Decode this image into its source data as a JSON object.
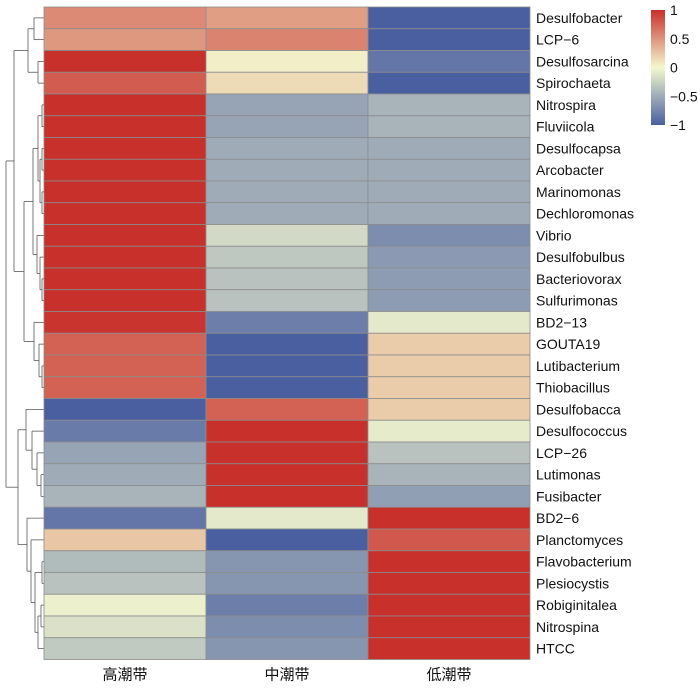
{
  "chart_data": {
    "type": "heatmap",
    "title": "",
    "xlabel": "",
    "ylabel": "",
    "columns": [
      "高潮带",
      "中潮带",
      "低潮带"
    ],
    "rows": [
      {
        "name": "Desulfobacter",
        "values": [
          0.55,
          0.45,
          -1.0
        ]
      },
      {
        "name": "LCP−6",
        "values": [
          0.48,
          0.58,
          -1.0
        ]
      },
      {
        "name": "Desulfosarcina",
        "values": [
          1.0,
          0.05,
          -0.85
        ]
      },
      {
        "name": "Spirochaeta",
        "values": [
          0.78,
          0.15,
          -1.0
        ]
      },
      {
        "name": "Nitrospira",
        "values": [
          1.0,
          -0.55,
          -0.45
        ]
      },
      {
        "name": "Fluviicola",
        "values": [
          1.0,
          -0.55,
          -0.45
        ]
      },
      {
        "name": "Desulfocapsa",
        "values": [
          1.0,
          -0.5,
          -0.5
        ]
      },
      {
        "name": "Arcobacter",
        "values": [
          1.0,
          -0.5,
          -0.5
        ]
      },
      {
        "name": "Marinomonas",
        "values": [
          1.0,
          -0.5,
          -0.5
        ]
      },
      {
        "name": "Dechloromonas",
        "values": [
          1.0,
          -0.5,
          -0.5
        ]
      },
      {
        "name": "Vibrio",
        "values": [
          1.0,
          -0.2,
          -0.7
        ]
      },
      {
        "name": "Desulfobulbus",
        "values": [
          1.0,
          -0.32,
          -0.62
        ]
      },
      {
        "name": "Bacteriovorax",
        "values": [
          1.0,
          -0.35,
          -0.6
        ]
      },
      {
        "name": "Sulfurimonas",
        "values": [
          1.0,
          -0.35,
          -0.6
        ]
      },
      {
        "name": "BD2−13",
        "values": [
          0.98,
          -0.8,
          -0.1
        ]
      },
      {
        "name": "GOUTA19",
        "values": [
          0.75,
          -1.0,
          0.22
        ]
      },
      {
        "name": "Lutibacterium",
        "values": [
          0.75,
          -1.0,
          0.22
        ]
      },
      {
        "name": "Thiobacillus",
        "values": [
          0.75,
          -1.0,
          0.22
        ]
      },
      {
        "name": "Desulfobacca",
        "values": [
          -1.0,
          0.75,
          0.22
        ]
      },
      {
        "name": "Desulfococcus",
        "values": [
          -0.82,
          1.0,
          -0.08
        ]
      },
      {
        "name": "LCP−26",
        "values": [
          -0.55,
          1.0,
          -0.35
        ]
      },
      {
        "name": "Lutimonas",
        "values": [
          -0.5,
          1.0,
          -0.45
        ]
      },
      {
        "name": "Fusibacter",
        "values": [
          -0.45,
          1.0,
          -0.58
        ]
      },
      {
        "name": "BD2−6",
        "values": [
          -0.85,
          -0.1,
          1.0
        ]
      },
      {
        "name": "Planctomyces",
        "values": [
          0.25,
          -1.0,
          0.8
        ]
      },
      {
        "name": "Flavobacterium",
        "values": [
          -0.4,
          -0.65,
          1.0
        ]
      },
      {
        "name": "Plesiocystis",
        "values": [
          -0.35,
          -0.65,
          1.0
        ]
      },
      {
        "name": "Robiginitalea",
        "values": [
          -0.05,
          -0.8,
          1.0
        ]
      },
      {
        "name": "Nitrospina",
        "values": [
          -0.15,
          -0.7,
          1.0
        ]
      },
      {
        "name": "HTCC",
        "values": [
          -0.3,
          -0.65,
          1.0
        ]
      }
    ],
    "scale": {
      "min": -1,
      "max": 1,
      "colors": [
        "#4a5fa0",
        "#f4f8cf",
        "#c8302b"
      ],
      "ticks": [
        "1",
        "0.5",
        "0",
        "−0.5",
        "−1"
      ],
      "tick_values": [
        1,
        0.5,
        0,
        -0.5,
        -1
      ]
    },
    "legend_position": "top-right",
    "row_dendrogram": "left"
  }
}
